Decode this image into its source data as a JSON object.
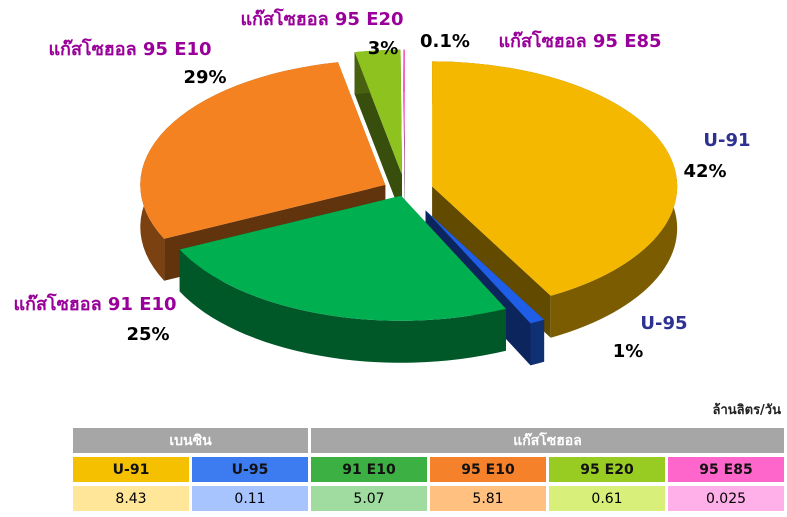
{
  "chart_data": {
    "type": "pie",
    "categories": [
      "U-91",
      "U-95",
      "แก๊สโซฮอล 91 E10",
      "แก๊สโซฮอล 95 E10",
      "แก๊สโซฮอล 95 E20",
      "แก๊สโซฮอล 95 E85"
    ],
    "values": [
      42,
      1,
      25,
      29,
      3,
      0.1
    ],
    "value_labels": [
      "42%",
      "1%",
      "25%",
      "29%",
      "3%",
      "0.1%"
    ],
    "colors": [
      "#f5b800",
      "#1f5fe8",
      "#00b050",
      "#f58220",
      "#8dc21f",
      "#ff66cc"
    ]
  },
  "table": {
    "unit": "ล้านลิตร/วัน",
    "groups": [
      "เบนซิน",
      "แก๊สโซฮอล"
    ],
    "columns": [
      "U-91",
      "U-95",
      "91 E10",
      "95 E10",
      "95 E20",
      "95 E85"
    ],
    "values": [
      8.43,
      0.11,
      5.07,
      5.81,
      0.61,
      0.025
    ]
  }
}
